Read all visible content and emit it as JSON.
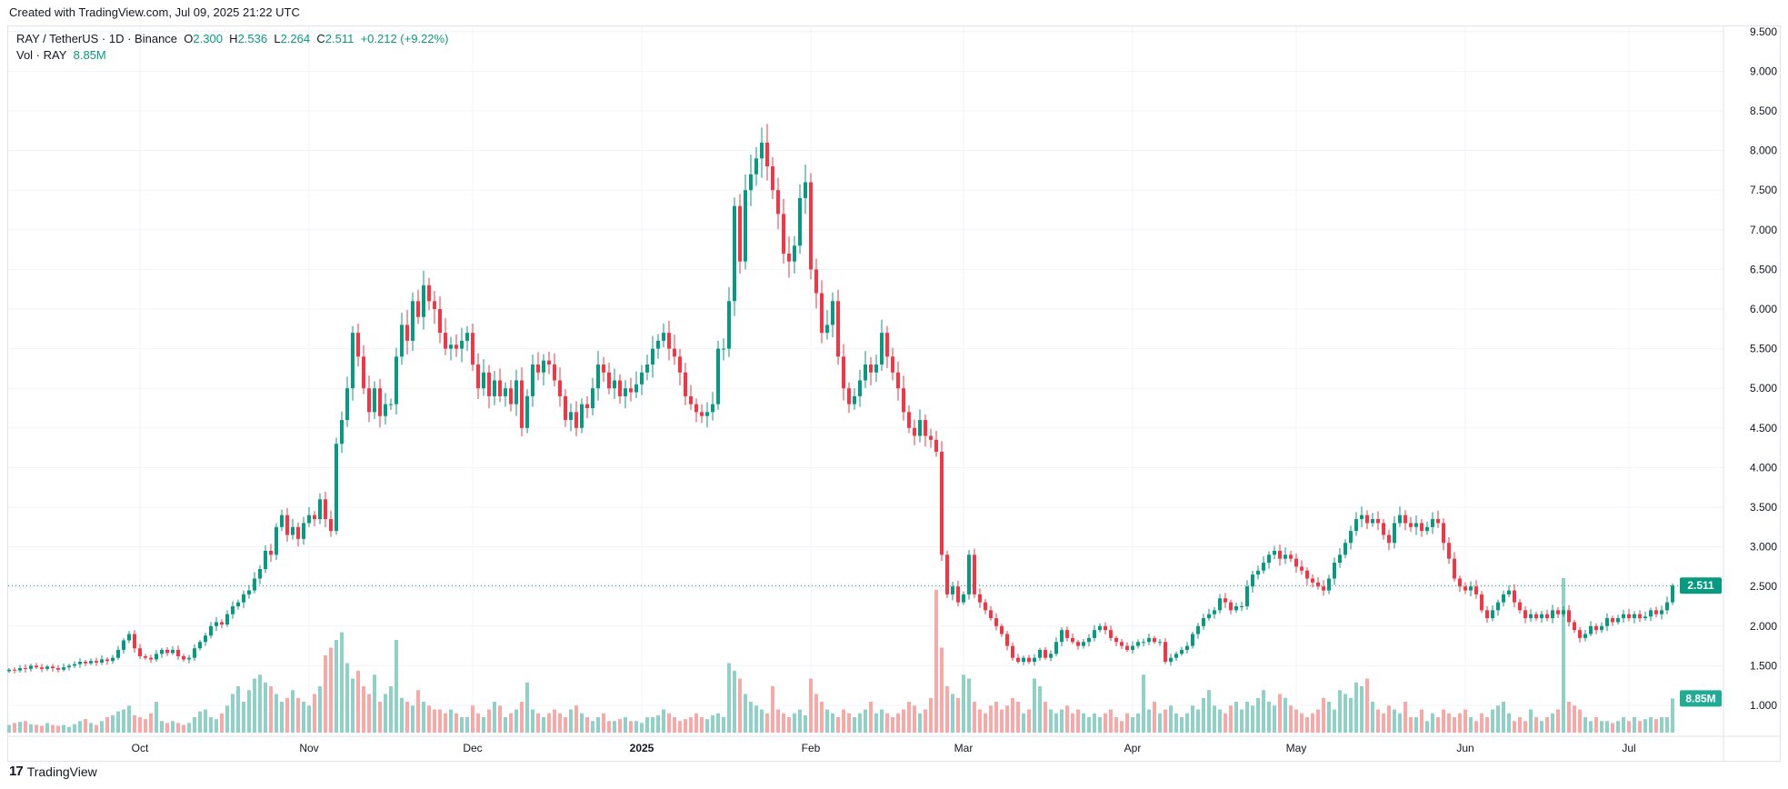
{
  "header": {
    "created": "Created with TradingView.com, Jul 09, 2025 21:22 UTC"
  },
  "legend": {
    "symbol": "RAY / TetherUS · 1D · Binance",
    "o_label": "O",
    "o": "2.300",
    "h_label": "H",
    "h": "2.536",
    "l_label": "L",
    "l": "2.264",
    "c_label": "C",
    "c": "2.511",
    "change": "+0.212 (+9.22%)",
    "vol_label": "Vol · RAY",
    "vol": "8.85M"
  },
  "footer": {
    "brand": "TradingView"
  },
  "colors": {
    "up": "#089981",
    "down": "#F23645",
    "vol_up": "#8fd1c6",
    "vol_down": "#f7a9a7",
    "grid": "#f0f3fa"
  },
  "chart_data": {
    "type": "candlestick",
    "symbol": "RAY/USDT",
    "interval": "1D",
    "start_date": "2024-09-07",
    "end_date": "2025-07-09",
    "ylim": [
      0.7,
      9.6
    ],
    "y_ticks": [
      "1.000",
      "1.500",
      "2.000",
      "2.500",
      "3.000",
      "3.500",
      "4.000",
      "4.500",
      "5.000",
      "5.500",
      "6.000",
      "6.500",
      "7.000",
      "7.500",
      "8.000",
      "8.500",
      "9.000",
      "9.500"
    ],
    "x_ticks": [
      {
        "label": "Oct",
        "day_index": 24
      },
      {
        "label": "Nov",
        "day_index": 55
      },
      {
        "label": "Dec",
        "day_index": 85
      },
      {
        "label": "2025",
        "day_index": 116
      },
      {
        "label": "Feb",
        "day_index": 147
      },
      {
        "label": "Mar",
        "day_index": 175
      },
      {
        "label": "Apr",
        "day_index": 206
      },
      {
        "label": "May",
        "day_index": 236
      },
      {
        "label": "Jun",
        "day_index": 267
      },
      {
        "label": "Jul",
        "day_index": 297
      }
    ],
    "last_price": "2.511",
    "last_volume": "8.85M",
    "first_open": 1.43,
    "last_candle": {
      "open": 2.3,
      "high": 2.536,
      "low": 2.264,
      "close": 2.511
    },
    "closes": [
      1.45,
      1.44,
      1.47,
      1.46,
      1.5,
      1.48,
      1.46,
      1.49,
      1.47,
      1.45,
      1.48,
      1.5,
      1.52,
      1.55,
      1.53,
      1.56,
      1.54,
      1.58,
      1.56,
      1.6,
      1.7,
      1.82,
      1.9,
      1.72,
      1.62,
      1.6,
      1.58,
      1.65,
      1.7,
      1.66,
      1.7,
      1.62,
      1.58,
      1.6,
      1.72,
      1.8,
      1.88,
      2.0,
      2.05,
      2.02,
      2.15,
      2.25,
      2.3,
      2.4,
      2.45,
      2.6,
      2.72,
      2.95,
      2.9,
      3.25,
      3.4,
      3.15,
      3.25,
      3.1,
      3.3,
      3.4,
      3.35,
      3.6,
      3.35,
      3.2,
      4.3,
      4.6,
      5.0,
      5.7,
      5.4,
      5.0,
      4.7,
      5.0,
      4.65,
      4.8,
      4.8,
      5.4,
      5.8,
      5.6,
      6.1,
      5.9,
      6.3,
      6.1,
      6.0,
      5.7,
      5.5,
      5.55,
      5.5,
      5.6,
      5.7,
      5.3,
      5.0,
      5.2,
      4.9,
      5.1,
      4.9,
      5.0,
      4.8,
      5.1,
      4.5,
      4.9,
      5.3,
      5.2,
      5.35,
      5.3,
      5.1,
      4.9,
      4.6,
      4.7,
      4.5,
      4.8,
      4.75,
      5.0,
      5.3,
      5.2,
      5.0,
      5.1,
      4.9,
      5.0,
      4.95,
      5.05,
      5.2,
      5.3,
      5.5,
      5.6,
      5.7,
      5.5,
      5.4,
      5.2,
      4.9,
      4.8,
      4.7,
      4.65,
      4.7,
      4.8,
      5.5,
      5.5,
      6.1,
      7.3,
      6.6,
      7.5,
      7.7,
      7.9,
      8.1,
      7.8,
      7.5,
      7.2,
      6.7,
      6.6,
      6.8,
      7.4,
      7.6,
      6.5,
      6.2,
      5.7,
      5.8,
      6.1,
      5.4,
      5.0,
      4.8,
      4.9,
      5.1,
      5.3,
      5.2,
      5.3,
      5.7,
      5.4,
      5.2,
      5.0,
      4.7,
      4.5,
      4.4,
      4.6,
      4.4,
      4.35,
      4.2,
      2.9,
      2.4,
      2.5,
      2.3,
      2.4,
      2.9,
      2.4,
      2.3,
      2.2,
      2.1,
      2.0,
      1.9,
      1.75,
      1.6,
      1.55,
      1.6,
      1.55,
      1.6,
      1.7,
      1.6,
      1.65,
      1.8,
      1.95,
      1.85,
      1.8,
      1.75,
      1.8,
      1.85,
      1.95,
      2.0,
      1.95,
      1.85,
      1.8,
      1.75,
      1.7,
      1.75,
      1.8,
      1.8,
      1.85,
      1.8,
      1.8,
      1.55,
      1.6,
      1.65,
      1.7,
      1.75,
      1.9,
      2.0,
      2.1,
      2.15,
      2.2,
      2.35,
      2.3,
      2.2,
      2.25,
      2.25,
      2.5,
      2.65,
      2.7,
      2.8,
      2.9,
      2.95,
      2.85,
      2.9,
      2.85,
      2.75,
      2.7,
      2.6,
      2.55,
      2.5,
      2.45,
      2.6,
      2.8,
      2.9,
      3.05,
      3.2,
      3.35,
      3.4,
      3.3,
      3.35,
      3.3,
      3.15,
      3.05,
      3.3,
      3.4,
      3.3,
      3.25,
      3.3,
      3.2,
      3.25,
      3.35,
      3.3,
      3.05,
      2.85,
      2.6,
      2.5,
      2.45,
      2.5,
      2.4,
      2.2,
      2.1,
      2.2,
      2.3,
      2.4,
      2.45,
      2.3,
      2.2,
      2.1,
      2.15,
      2.1,
      2.15,
      2.1,
      2.2,
      2.15,
      2.2,
      2.05,
      1.95,
      1.85,
      1.9,
      2.0,
      1.95,
      2.0,
      2.1,
      2.05,
      2.1,
      2.15,
      2.1,
      2.15,
      2.1,
      2.12,
      2.2,
      2.15,
      2.2,
      2.3,
      2.511
    ],
    "volumes_millions": [
      2,
      2.5,
      2.8,
      3,
      2.2,
      2,
      1.8,
      2.5,
      2,
      1.8,
      2,
      1.5,
      2.2,
      3,
      3.5,
      2.5,
      2,
      3,
      4,
      4.5,
      5.5,
      6,
      7,
      4.5,
      4,
      3.5,
      5,
      8,
      3,
      2.5,
      3,
      2.5,
      2,
      2.5,
      4,
      5.5,
      6,
      4,
      3.5,
      5,
      7,
      10,
      12,
      8,
      11,
      14,
      15,
      13,
      12,
      10,
      8,
      9,
      11,
      9,
      8,
      7,
      10,
      12,
      20,
      22,
      24,
      26,
      18,
      14,
      16,
      12,
      10,
      15,
      8,
      10,
      12,
      24,
      9,
      8,
      7,
      11,
      8,
      7,
      6,
      6,
      5,
      6,
      5,
      4,
      4,
      7,
      5,
      4,
      6,
      8,
      7,
      4,
      5,
      6,
      8,
      13,
      6,
      5,
      4,
      5,
      6,
      5,
      4,
      6,
      7,
      5,
      4,
      3,
      4,
      5,
      3,
      3,
      3.5,
      4,
      3,
      3,
      2.5,
      4,
      4,
      4.5,
      6,
      5,
      4,
      3,
      3.5,
      4,
      5,
      4,
      3.5,
      4.5,
      5,
      4,
      18,
      16,
      14,
      10,
      8,
      7,
      6,
      5,
      12,
      6,
      5,
      4,
      5,
      6,
      4.5,
      14,
      10,
      8,
      6,
      5,
      4,
      6,
      5,
      4,
      5,
      6,
      8,
      5,
      6,
      5,
      4,
      5,
      6,
      8,
      7,
      5,
      6,
      9,
      37,
      22,
      12,
      10,
      9,
      15,
      14,
      8,
      6,
      5,
      7,
      8,
      6,
      7,
      9,
      8,
      5,
      6,
      14,
      12,
      8,
      6,
      5,
      6,
      7,
      5,
      6,
      5,
      4,
      5,
      4,
      5,
      6,
      4,
      3,
      5,
      4,
      5,
      15,
      6,
      8,
      5,
      6,
      7,
      5,
      4,
      5,
      7,
      6,
      9,
      11,
      7,
      6,
      5,
      7,
      8,
      6,
      8,
      7,
      9,
      11,
      8,
      7,
      10,
      9,
      7,
      6,
      5,
      4,
      5,
      6,
      9,
      8,
      6,
      11,
      10,
      9,
      13,
      12,
      14,
      8,
      6,
      5,
      7,
      6,
      5,
      8,
      4,
      4,
      6,
      3,
      5,
      4,
      6,
      5,
      4,
      5,
      6,
      4,
      3,
      5,
      4,
      6,
      7,
      8,
      5,
      3,
      4,
      3,
      6,
      4,
      3,
      4,
      5,
      6,
      40,
      8,
      7,
      6,
      4,
      3,
      4,
      3,
      3,
      2.5,
      3,
      4,
      3,
      4,
      3,
      3.5,
      4,
      3.5,
      4,
      4,
      8.85
    ]
  }
}
